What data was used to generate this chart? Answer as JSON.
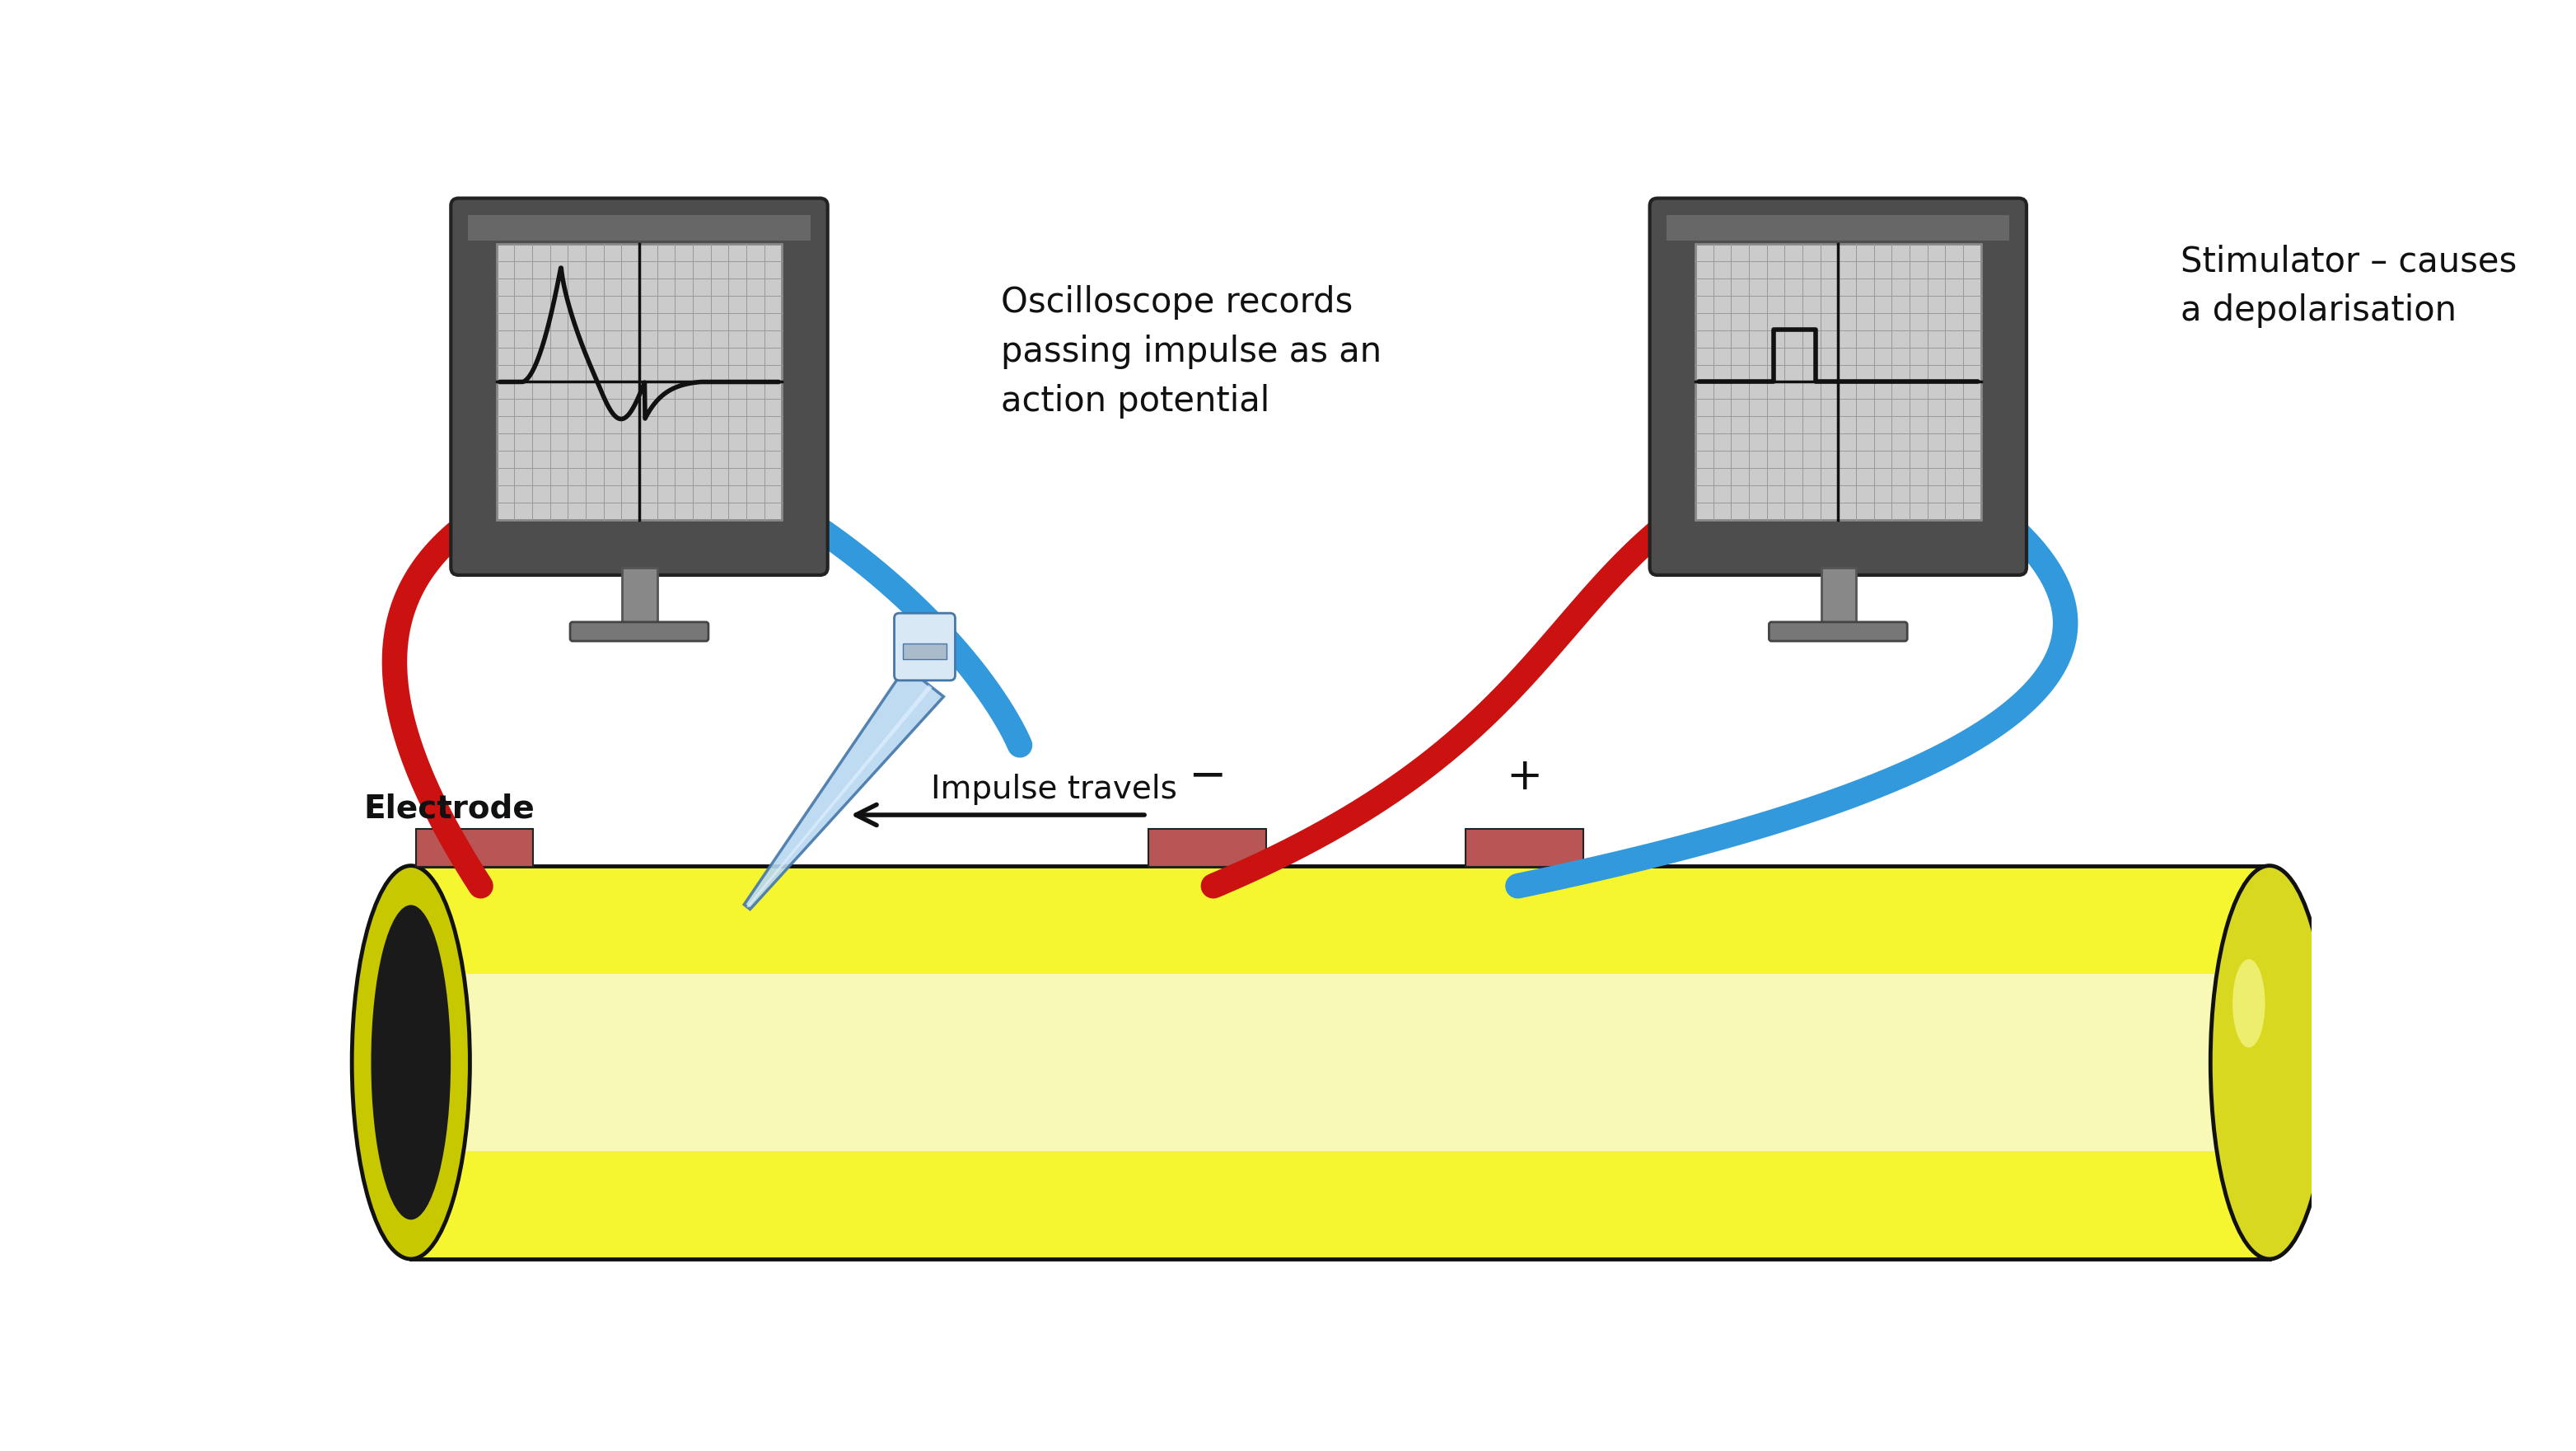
{
  "bg_color": "#ffffff",
  "red_wire": "#cc1111",
  "blue_wire": "#3399dd",
  "electrode_color": "#b85555",
  "monitor_body": "#555555",
  "monitor_screen": "#cccccc",
  "monitor_grid": "#aaaaaa",
  "nerve_yellow": "#f0f000",
  "nerve_light": "#fafaaa",
  "nerve_white": "#fffff0",
  "text_osc": "Oscilloscope records\npassing impulse as an\naction potential",
  "text_stim": "Stimulator – causes\na depolarisation",
  "text_electrode": "Electrode",
  "text_impulse": "Impulse travels",
  "text_minus": "−",
  "text_plus": "+"
}
